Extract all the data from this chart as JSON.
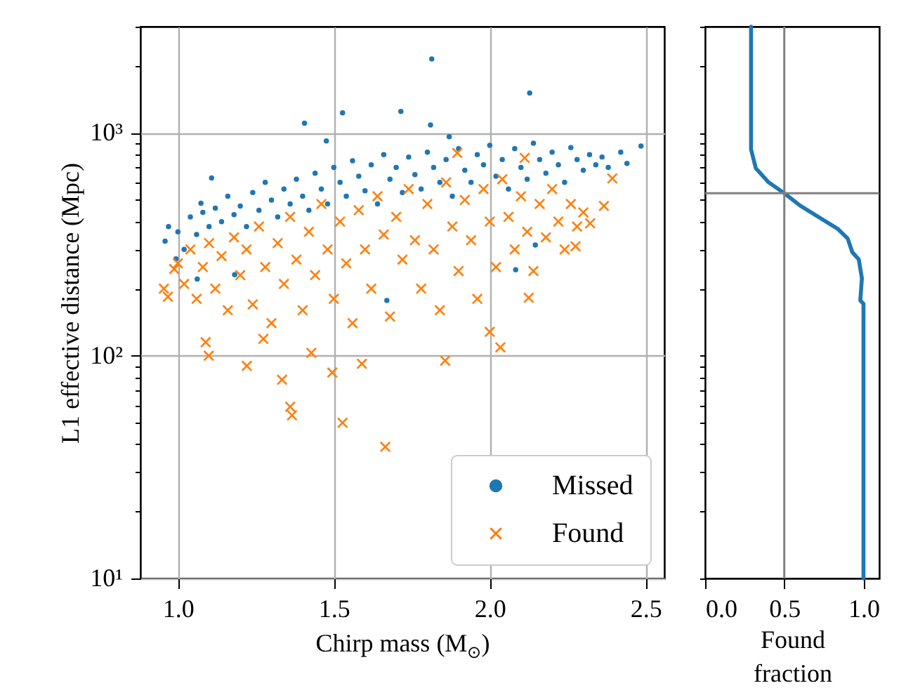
{
  "chart_data": [
    {
      "type": "scatter",
      "xlabel": "Chirp mass (M$_{⊙}$)",
      "ylabel": "L1 effective distance (Mpc)",
      "log": "y",
      "grid": true,
      "legend": "bottom right",
      "xlim": [
        0.88,
        2.56
      ],
      "xticks": [
        {
          "value": 1,
          "label": "1.0"
        },
        1.5,
        {
          "value": 2,
          "label": "2.0"
        },
        2.5
      ],
      "ylim": [
        10,
        3000
      ],
      "yticks": [
        {
          "value": 10,
          "label": "10¹"
        },
        {
          "value": 20,
          "label": null
        },
        {
          "value": 30,
          "label": null
        },
        {
          "value": 40,
          "label": null
        },
        {
          "value": 50,
          "label": null
        },
        {
          "value": 60,
          "label": null
        },
        {
          "value": 70,
          "label": null
        },
        {
          "value": 80,
          "label": null
        },
        {
          "value": 90,
          "label": null
        },
        {
          "value": 100,
          "label": "10²"
        },
        {
          "value": 200,
          "label": null
        },
        {
          "value": 300,
          "label": null
        },
        {
          "value": 400,
          "label": null
        },
        {
          "value": 500,
          "label": null
        },
        {
          "value": 600,
          "label": null
        },
        {
          "value": 700,
          "label": null
        },
        {
          "value": 800,
          "label": null
        },
        {
          "value": 900,
          "label": null
        },
        {
          "value": 1000,
          "label": "10³"
        },
        {
          "value": 2000,
          "label": null
        },
        {
          "value": 3000,
          "label": null
        }
      ],
      "series": [
        {
          "name": "Missed",
          "color": "#1f77b4",
          "marker": "circle",
          "x": [
            1.814,
            2.128,
            1.528,
            1.715,
            1.406,
            1.81,
            1.87,
            1.476,
            2.485,
            2.44,
            0.959,
            0.994,
            1.062,
            1.108,
            1.074,
            1.182,
            1.67,
            2.083,
            2.146,
            0.97,
            1.0,
            1.02,
            1.04,
            1.06,
            1.08,
            1.1,
            1.12,
            1.14,
            1.16,
            1.18,
            1.2,
            1.22,
            1.24,
            1.26,
            1.28,
            1.3,
            1.32,
            1.34,
            1.36,
            1.38,
            1.4,
            1.42,
            1.44,
            1.46,
            1.48,
            1.5,
            1.52,
            1.54,
            1.56,
            1.58,
            1.6,
            1.62,
            1.64,
            1.66,
            1.68,
            1.7,
            1.72,
            1.74,
            1.76,
            1.78,
            1.8,
            1.82,
            1.84,
            1.86,
            1.88,
            1.9,
            1.92,
            1.94,
            1.96,
            1.98,
            2.0,
            2.02,
            2.04,
            2.06,
            2.08,
            2.1,
            2.12,
            2.14,
            2.16,
            2.18,
            2.2,
            2.22,
            2.24,
            2.26,
            2.28,
            2.3,
            2.32,
            2.34,
            2.36,
            2.38,
            2.42
          ],
          "values": [
            2150,
            1510,
            1230,
            1250,
            1107,
            1086,
            962,
            921,
            873,
            730,
            327,
            272,
            221,
            628,
            484,
            231,
            177,
            243,
            314,
            380,
            360,
            300,
            420,
            350,
            440,
            380,
            460,
            400,
            520,
            430,
            470,
            380,
            540,
            450,
            600,
            500,
            420,
            560,
            480,
            620,
            520,
            450,
            660,
            560,
            480,
            700,
            600,
            520,
            750,
            640,
            550,
            720,
            480,
            800,
            620,
            700,
            540,
            780,
            650,
            560,
            820,
            700,
            600,
            760,
            520,
            850,
            680,
            600,
            800,
            720,
            880,
            640,
            760,
            560,
            850,
            700,
            620,
            900,
            760,
            660,
            820,
            720,
            600,
            860,
            760,
            680,
            800,
            720,
            780,
            700,
            820
          ]
        },
        {
          "name": "Found",
          "color": "#ff7f0e",
          "marker": "cross",
          "x": [
            1.089,
            1.099,
            1.221,
            1.334,
            1.36,
            1.366,
            1.528,
            1.665,
            1.495,
            1.428,
            1.59,
            1.857,
            2.034,
            2.0,
            1.274,
            0.968,
            0.955,
            0.988,
            1.896,
            2.393,
            2.366,
            2.322,
            2.275,
            2.125,
            2.112,
            1.0,
            1.02,
            1.04,
            1.06,
            1.08,
            1.1,
            1.12,
            1.14,
            1.16,
            1.18,
            1.2,
            1.22,
            1.24,
            1.26,
            1.28,
            1.3,
            1.32,
            1.34,
            1.36,
            1.38,
            1.4,
            1.42,
            1.44,
            1.46,
            1.48,
            1.5,
            1.52,
            1.54,
            1.56,
            1.58,
            1.6,
            1.62,
            1.64,
            1.66,
            1.68,
            1.7,
            1.72,
            1.74,
            1.76,
            1.78,
            1.8,
            1.82,
            1.84,
            1.86,
            1.88,
            1.9,
            1.92,
            1.94,
            1.96,
            1.98,
            2.0,
            2.02,
            2.04,
            2.06,
            2.08,
            2.1,
            2.12,
            2.14,
            2.16,
            2.18,
            2.2,
            2.22,
            2.24,
            2.26,
            2.28,
            2.3
          ],
          "values": [
            115,
            100,
            90,
            78,
            59,
            54,
            50,
            39,
            84,
            103,
            92,
            95,
            109,
            128,
            119,
            184,
            200,
            245,
            813,
            625,
            470,
            393,
            310,
            182,
            773,
            260,
            210,
            300,
            180,
            250,
            320,
            200,
            280,
            160,
            340,
            230,
            300,
            170,
            380,
            250,
            140,
            320,
            210,
            420,
            270,
            160,
            360,
            230,
            480,
            300,
            180,
            400,
            260,
            140,
            450,
            300,
            200,
            520,
            350,
            150,
            420,
            270,
            560,
            330,
            200,
            480,
            300,
            160,
            600,
            380,
            240,
            500,
            330,
            180,
            560,
            400,
            250,
            620,
            420,
            300,
            520,
            360,
            240,
            480,
            340,
            560,
            400,
            300,
            480,
            380,
            440
          ]
        }
      ]
    },
    {
      "type": "line",
      "xlabel": "Found fraction",
      "log": "y",
      "tick_labels": "x",
      "xlim": [
        0,
        1.1
      ],
      "xticks": [
        {
          "value": 0,
          "label": "0.0"
        },
        0.5,
        {
          "value": 1,
          "label": "1.0"
        }
      ],
      "ylim": [
        10,
        3000
      ],
      "yticks": [
        {
          "value": 10,
          "label": null
        },
        {
          "value": 20,
          "label": null
        },
        {
          "value": 30,
          "label": null
        },
        {
          "value": 40,
          "label": null
        },
        {
          "value": 50,
          "label": null
        },
        {
          "value": 60,
          "label": null
        },
        {
          "value": 70,
          "label": null
        },
        {
          "value": 80,
          "label": null
        },
        {
          "value": 90,
          "label": null
        },
        {
          "value": 100,
          "label": null
        },
        {
          "value": 200,
          "label": null
        },
        {
          "value": 300,
          "label": null
        },
        {
          "value": 400,
          "label": null
        },
        {
          "value": 500,
          "label": null
        },
        {
          "value": 600,
          "label": null
        },
        {
          "value": 700,
          "label": null
        },
        {
          "value": 800,
          "label": null
        },
        {
          "value": 900,
          "label": null
        },
        {
          "value": 1000,
          "label": null
        },
        {
          "value": 2000,
          "label": null
        },
        {
          "value": 3000,
          "label": null
        }
      ],
      "ref_lines": [
        {
          "axis": "x",
          "value": 0.5,
          "color": "#808080"
        },
        {
          "axis": "y",
          "value": 536,
          "color": "#808080"
        }
      ],
      "series": [
        {
          "color": "#1f77b4",
          "x": [
            0.29,
            0.29,
            0.32,
            0.4,
            0.5,
            0.6,
            0.72,
            0.84,
            0.9,
            0.93,
            0.97,
            0.99,
            0.98,
            1.0,
            1.0
          ],
          "values": [
            3000,
            843,
            695,
            601,
            536,
            472,
            418,
            370,
            336,
            291,
            271,
            223,
            177,
            171,
            10
          ]
        }
      ]
    }
  ]
}
